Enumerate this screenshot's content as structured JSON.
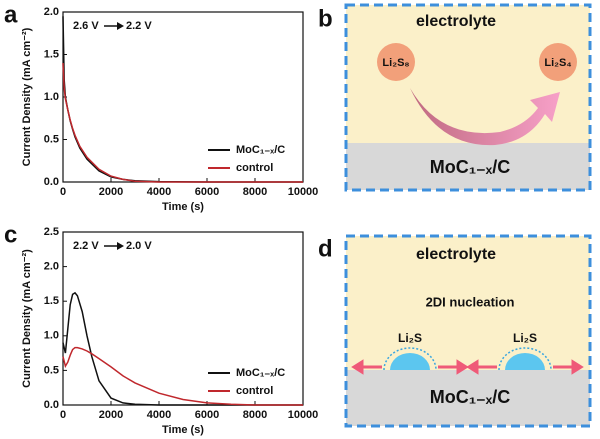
{
  "chart_data": [
    {
      "type": "line",
      "panel_label": "a",
      "annotation": {
        "from": "2.6 V",
        "to": "2.2 V"
      },
      "xlabel": "Time (s)",
      "ylabel": "Current Density (mA cm⁻²)",
      "x": [
        0,
        50,
        100,
        200,
        300,
        400,
        500,
        700,
        1000,
        1500,
        2000,
        2500,
        3000,
        4000,
        6000,
        8000,
        10000
      ],
      "series": [
        {
          "name": "MoC₁₋ₓ/C",
          "color": "#111111",
          "values": [
            1.95,
            1.2,
            1.0,
            0.85,
            0.72,
            0.62,
            0.53,
            0.4,
            0.27,
            0.13,
            0.06,
            0.03,
            0.015,
            0.005,
            0,
            0,
            0
          ]
        },
        {
          "name": "control",
          "color": "#c0282d",
          "values": [
            1.4,
            1.1,
            0.98,
            0.85,
            0.73,
            0.63,
            0.55,
            0.42,
            0.29,
            0.15,
            0.07,
            0.03,
            0.01,
            0,
            0,
            0,
            0
          ]
        }
      ],
      "xlim": [
        0,
        10000
      ],
      "xticks": [
        0,
        2000,
        4000,
        6000,
        8000,
        10000
      ],
      "ylim": [
        0,
        2.0
      ],
      "yticks": [
        {
          "value": 0,
          "label": "0.0"
        },
        {
          "value": 0.5,
          "label": "0.5"
        },
        {
          "value": 1,
          "label": "1.0"
        },
        {
          "value": 1.5,
          "label": "1.5"
        },
        {
          "value": 2,
          "label": "2.0"
        }
      ],
      "legend": "lower right"
    },
    {
      "type": "line",
      "panel_label": "c",
      "annotation": {
        "from": "2.2 V",
        "to": "2.0 V"
      },
      "xlabel": "Time (s)",
      "ylabel": "Current Density (mA cm⁻²)",
      "x": [
        0,
        100,
        200,
        300,
        400,
        500,
        600,
        800,
        1000,
        1200,
        1500,
        2000,
        2500,
        3000,
        4000,
        5000,
        6000,
        7000,
        8000,
        10000
      ],
      "series": [
        {
          "name": "MoC₁₋ₓ/C",
          "color": "#111111",
          "values": [
            0.9,
            0.75,
            1.1,
            1.45,
            1.6,
            1.62,
            1.58,
            1.35,
            1.0,
            0.7,
            0.35,
            0.1,
            0.03,
            0.01,
            0,
            0,
            0,
            0,
            0,
            0
          ]
        },
        {
          "name": "control",
          "color": "#c0282d",
          "values": [
            0.7,
            0.56,
            0.62,
            0.72,
            0.8,
            0.83,
            0.83,
            0.81,
            0.78,
            0.74,
            0.67,
            0.55,
            0.42,
            0.32,
            0.17,
            0.08,
            0.03,
            0.01,
            0,
            0
          ]
        }
      ],
      "xlim": [
        0,
        10000
      ],
      "xticks": [
        0,
        2000,
        4000,
        6000,
        8000,
        10000
      ],
      "ylim": [
        0,
        2.5
      ],
      "yticks": [
        {
          "value": 0,
          "label": "0.0"
        },
        {
          "value": 0.5,
          "label": "0.5"
        },
        {
          "value": 1,
          "label": "1.0"
        },
        {
          "value": 1.5,
          "label": "1.5"
        },
        {
          "value": 2,
          "label": "2.0"
        },
        {
          "value": 2.5,
          "label": "2.5"
        }
      ],
      "legend": "lower right"
    }
  ],
  "diagrams": [
    {
      "panel_label": "b",
      "region_label": "electrolyte",
      "species": [
        "Li₂S₈",
        "Li₂S₄"
      ],
      "substrate": "MoC₁₋ₓ/C"
    },
    {
      "panel_label": "d",
      "region_label": "electrolyte",
      "caption": "2DI nucleation",
      "species": [
        "Li₂S",
        "Li₂S"
      ],
      "substrate": "MoC₁₋ₓ/C"
    }
  ]
}
